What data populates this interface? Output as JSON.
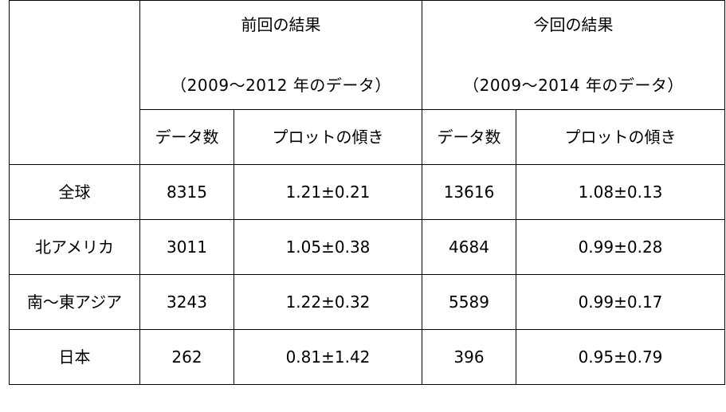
{
  "table": {
    "groups": [
      {
        "title": "前回の結果",
        "subtitle": "（2009～2012 年のデータ）"
      },
      {
        "title": "今回の結果",
        "subtitle": "（2009～2014 年のデータ）"
      }
    ],
    "subheaders": [
      "データ数",
      "プロットの傾き",
      "データ数",
      "プロットの傾き"
    ],
    "rows": [
      {
        "region": "全球",
        "prev_count": "8315",
        "prev_slope": "1.21±0.21",
        "curr_count": "13616",
        "curr_slope": "1.08±0.13"
      },
      {
        "region": "北アメリカ",
        "prev_count": "3011",
        "prev_slope": "1.05±0.38",
        "curr_count": "4684",
        "curr_slope": "0.99±0.28"
      },
      {
        "region": "南～東アジア",
        "prev_count": "3243",
        "prev_slope": "1.22±0.32",
        "curr_count": "5589",
        "curr_slope": "0.99±0.17"
      },
      {
        "region": "日本",
        "prev_count": "262",
        "prev_slope": "0.81±1.42",
        "curr_count": "396",
        "curr_slope": "0.95±0.79"
      }
    ]
  }
}
